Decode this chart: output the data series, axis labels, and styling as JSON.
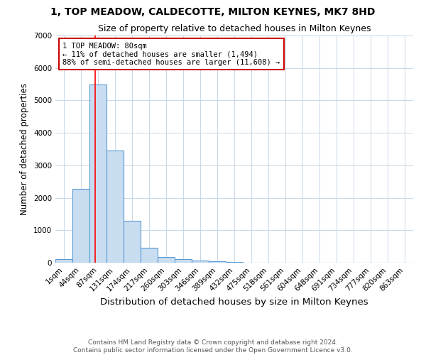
{
  "title": "1, TOP MEADOW, CALDECOTTE, MILTON KEYNES, MK7 8HD",
  "subtitle": "Size of property relative to detached houses in Milton Keynes",
  "xlabel": "Distribution of detached houses by size in Milton Keynes",
  "ylabel": "Number of detached properties",
  "categories": [
    "1sqm",
    "44sqm",
    "87sqm",
    "131sqm",
    "174sqm",
    "217sqm",
    "260sqm",
    "303sqm",
    "346sqm",
    "389sqm",
    "432sqm",
    "475sqm",
    "518sqm",
    "561sqm",
    "604sqm",
    "648sqm",
    "691sqm",
    "734sqm",
    "777sqm",
    "820sqm",
    "863sqm"
  ],
  "values": [
    100,
    2280,
    5500,
    3450,
    1300,
    450,
    175,
    100,
    75,
    50,
    30,
    10,
    5,
    3,
    2,
    1,
    1,
    0,
    0,
    0,
    0
  ],
  "bar_color": "#c9ddf0",
  "bar_edge_color": "#5b9bd5",
  "bar_edge_width": 0.8,
  "grid_color": "#c8d8e8",
  "background_color": "#ffffff",
  "ylim": [
    0,
    7000
  ],
  "yticks": [
    0,
    1000,
    2000,
    3000,
    4000,
    5000,
    6000,
    7000
  ],
  "annotation_text": "1 TOP MEADOW: 80sqm\n← 11% of detached houses are smaller (1,494)\n88% of semi-detached houses are larger (11,608) →",
  "annotation_box_color": "#ffffff",
  "annotation_box_edge_color": "#cc0000",
  "footer_line1": "Contains HM Land Registry data © Crown copyright and database right 2024.",
  "footer_line2": "Contains public sector information licensed under the Open Government Licence v3.0.",
  "title_fontsize": 10,
  "subtitle_fontsize": 9,
  "xlabel_fontsize": 9.5,
  "ylabel_fontsize": 8.5,
  "tick_fontsize": 7.5,
  "annotation_fontsize": 7.5,
  "footer_fontsize": 6.5
}
